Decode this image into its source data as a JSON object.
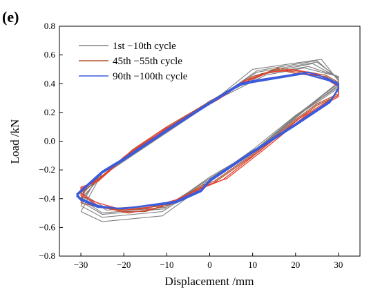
{
  "panel_label": "(e)",
  "chart_data": {
    "type": "line",
    "title": "",
    "xlabel": "Displacement /mm",
    "ylabel": "Load /kN",
    "xlim": [
      -35,
      35
    ],
    "ylim": [
      -0.8,
      0.8
    ],
    "xticks": [
      -30,
      -20,
      -10,
      0,
      10,
      20,
      30
    ],
    "xtick_labels": [
      "−30",
      "−20",
      "−10",
      "0",
      "10",
      "20",
      "30"
    ],
    "yticks": [
      -0.8,
      -0.6,
      -0.4,
      -0.2,
      0.0,
      0.2,
      0.4,
      0.6,
      0.8
    ],
    "ytick_labels": [
      "−0.8",
      "−0.6",
      "−0.4",
      "−0.2",
      "0.0",
      "0.2",
      "0.4",
      "0.6",
      "0.8"
    ],
    "grid": false,
    "legend_position": "top-left",
    "series": [
      {
        "name": "1st −10th cycle",
        "color": "#808080",
        "loops": [
          [
            [
              -30,
              -0.49
            ],
            [
              -25,
              -0.56
            ],
            [
              -11,
              -0.52
            ],
            [
              0,
              -0.28
            ],
            [
              10,
              -0.08
            ],
            [
              20,
              0.17
            ],
            [
              30,
              0.37
            ],
            [
              30,
              0.42
            ],
            [
              26,
              0.57
            ],
            [
              10,
              0.5
            ],
            [
              0,
              0.26
            ],
            [
              -10,
              0.06
            ],
            [
              -25,
              -0.22
            ],
            [
              -30,
              -0.49
            ]
          ],
          [
            [
              -30,
              -0.45
            ],
            [
              -25,
              -0.53
            ],
            [
              -11,
              -0.49
            ],
            [
              0,
              -0.27
            ],
            [
              10,
              -0.06
            ],
            [
              20,
              0.18
            ],
            [
              30,
              0.38
            ],
            [
              30,
              0.43
            ],
            [
              25,
              0.56
            ],
            [
              11,
              0.49
            ],
            [
              0,
              0.26
            ],
            [
              -10,
              0.07
            ],
            [
              -26,
              -0.24
            ],
            [
              -30,
              -0.45
            ]
          ],
          [
            [
              -30,
              -0.42
            ],
            [
              -25,
              -0.51
            ],
            [
              -10,
              -0.47
            ],
            [
              0,
              -0.27
            ],
            [
              11,
              -0.06
            ],
            [
              21,
              0.19
            ],
            [
              30,
              0.39
            ],
            [
              30,
              0.44
            ],
            [
              25,
              0.55
            ],
            [
              11,
              0.48
            ],
            [
              0,
              0.27
            ],
            [
              -10,
              0.08
            ],
            [
              -26,
              -0.26
            ],
            [
              -30,
              -0.42
            ]
          ],
          [
            [
              -30,
              -0.4
            ],
            [
              -25,
              -0.5
            ],
            [
              -10,
              -0.46
            ],
            [
              0,
              -0.26
            ],
            [
              11,
              -0.05
            ],
            [
              21,
              0.2
            ],
            [
              30,
              0.4
            ],
            [
              30,
              0.44
            ],
            [
              24,
              0.54
            ],
            [
              12,
              0.47
            ],
            [
              0,
              0.27
            ],
            [
              -9,
              0.09
            ],
            [
              -25,
              -0.24
            ],
            [
              -30,
              -0.4
            ]
          ],
          [
            [
              -30,
              -0.38
            ],
            [
              -24,
              -0.48
            ],
            [
              -10,
              -0.45
            ],
            [
              0,
              -0.26
            ],
            [
              12,
              -0.04
            ],
            [
              22,
              0.21
            ],
            [
              30,
              0.41
            ],
            [
              30,
              0.45
            ],
            [
              23,
              0.52
            ],
            [
              13,
              0.47
            ],
            [
              0,
              0.28
            ],
            [
              -9,
              0.1
            ],
            [
              -25,
              -0.22
            ],
            [
              -30,
              -0.38
            ]
          ],
          [
            [
              -30,
              -0.36
            ],
            [
              -24,
              -0.47
            ],
            [
              -9,
              -0.44
            ],
            [
              0,
              -0.25
            ],
            [
              12,
              -0.04
            ],
            [
              22,
              0.22
            ],
            [
              30,
              0.41
            ],
            [
              30,
              0.45
            ],
            [
              22,
              0.51
            ],
            [
              13,
              0.46
            ],
            [
              1,
              0.28
            ],
            [
              -8,
              0.1
            ],
            [
              -24,
              -0.22
            ],
            [
              -30,
              -0.36
            ]
          ]
        ]
      },
      {
        "name": "45th −55th cycle",
        "color": "#b5532f",
        "loops": [
          [
            [
              -30,
              -0.43
            ],
            [
              -27,
              -0.45
            ],
            [
              -20,
              -0.49
            ],
            [
              -15,
              -0.49
            ],
            [
              -8,
              -0.43
            ],
            [
              -2,
              -0.32
            ],
            [
              1,
              -0.29
            ],
            [
              11,
              -0.08
            ],
            [
              20,
              0.14
            ],
            [
              25,
              0.25
            ],
            [
              30,
              0.32
            ],
            [
              30,
              0.4
            ],
            [
              27,
              0.45
            ],
            [
              20,
              0.47
            ],
            [
              16,
              0.5
            ],
            [
              10,
              0.45
            ],
            [
              3,
              0.33
            ],
            [
              -2,
              0.24
            ],
            [
              -10,
              0.1
            ],
            [
              -18,
              -0.06
            ],
            [
              -25,
              -0.25
            ],
            [
              -29,
              -0.34
            ],
            [
              -30,
              -0.43
            ]
          ],
          [
            [
              -30,
              -0.4
            ],
            [
              -27,
              -0.44
            ],
            [
              -21,
              -0.48
            ],
            [
              -15,
              -0.47
            ],
            [
              -8,
              -0.42
            ],
            [
              -2,
              -0.31
            ],
            [
              1,
              -0.28
            ],
            [
              11,
              -0.07
            ],
            [
              20,
              0.15
            ],
            [
              25,
              0.26
            ],
            [
              30,
              0.33
            ],
            [
              30,
              0.41
            ],
            [
              27,
              0.46
            ],
            [
              20,
              0.49
            ],
            [
              16,
              0.51
            ],
            [
              10,
              0.44
            ],
            [
              3,
              0.32
            ],
            [
              -2,
              0.24
            ],
            [
              -10,
              0.09
            ],
            [
              -18,
              -0.07
            ],
            [
              -25,
              -0.24
            ],
            [
              -29,
              -0.32
            ],
            [
              -30,
              -0.4
            ]
          ]
        ],
        "highlight_loops": [
          [
            [
              -30,
              -0.38
            ],
            [
              -26,
              -0.43
            ],
            [
              -20,
              -0.48
            ],
            [
              -14,
              -0.46
            ],
            [
              -8,
              -0.41
            ],
            [
              -2,
              -0.33
            ],
            [
              3,
              -0.27
            ],
            [
              12,
              -0.06
            ],
            [
              21,
              0.16
            ],
            [
              27,
              0.27
            ],
            [
              30,
              0.32
            ],
            [
              30,
              0.4
            ],
            [
              25,
              0.46
            ],
            [
              18,
              0.49
            ],
            [
              14,
              0.48
            ],
            [
              8,
              0.42
            ],
            [
              2,
              0.3
            ],
            [
              -4,
              0.2
            ],
            [
              -12,
              0.05
            ],
            [
              -20,
              -0.12
            ],
            [
              -26,
              -0.28
            ],
            [
              -30,
              -0.32
            ],
            [
              -30,
              -0.38
            ]
          ],
          [
            [
              -30,
              -0.36
            ],
            [
              -26,
              -0.45
            ],
            [
              -19,
              -0.5
            ],
            [
              -13,
              -0.47
            ],
            [
              -7,
              -0.4
            ],
            [
              -1,
              -0.31
            ],
            [
              4,
              -0.26
            ],
            [
              13,
              -0.05
            ],
            [
              22,
              0.17
            ],
            [
              27,
              0.26
            ],
            [
              30,
              0.31
            ],
            [
              30,
              0.38
            ],
            [
              25,
              0.47
            ],
            [
              19,
              0.5
            ],
            [
              14,
              0.48
            ],
            [
              8,
              0.41
            ],
            [
              2,
              0.29
            ],
            [
              -4,
              0.19
            ],
            [
              -12,
              0.06
            ],
            [
              -20,
              -0.11
            ],
            [
              -26,
              -0.27
            ],
            [
              -30,
              -0.33
            ],
            [
              -30,
              -0.36
            ]
          ]
        ],
        "highlight_color": "#e8402f"
      },
      {
        "name": "90th −100th cycle",
        "color": "#3b5bdb",
        "loops": [
          [
            [
              -31,
              -0.37
            ],
            [
              -30,
              -0.4
            ],
            [
              -26,
              -0.45
            ],
            [
              -21,
              -0.47
            ],
            [
              -8,
              -0.43
            ],
            [
              -2,
              -0.35
            ],
            [
              0,
              -0.28
            ],
            [
              10,
              -0.08
            ],
            [
              20,
              0.11
            ],
            [
              28,
              0.27
            ],
            [
              30,
              0.37
            ],
            [
              30,
              0.4
            ],
            [
              28,
              0.43
            ],
            [
              23,
              0.48
            ],
            [
              10,
              0.42
            ],
            [
              7,
              0.4
            ],
            [
              0,
              0.27
            ],
            [
              -10,
              0.08
            ],
            [
              -20,
              -0.12
            ],
            [
              -25,
              -0.21
            ],
            [
              -31,
              -0.37
            ]
          ],
          [
            [
              -31,
              -0.38
            ],
            [
              -30,
              -0.41
            ],
            [
              -26,
              -0.46
            ],
            [
              -20,
              -0.47
            ],
            [
              -8,
              -0.42
            ],
            [
              -2,
              -0.34
            ],
            [
              0,
              -0.27
            ],
            [
              10,
              -0.07
            ],
            [
              20,
              0.12
            ],
            [
              28,
              0.28
            ],
            [
              30,
              0.36
            ],
            [
              30,
              0.39
            ],
            [
              28,
              0.42
            ],
            [
              22,
              0.47
            ],
            [
              10,
              0.41
            ],
            [
              7,
              0.39
            ],
            [
              0,
              0.26
            ],
            [
              -10,
              0.07
            ],
            [
              -20,
              -0.13
            ],
            [
              -25,
              -0.22
            ],
            [
              -31,
              -0.38
            ]
          ]
        ]
      }
    ]
  }
}
